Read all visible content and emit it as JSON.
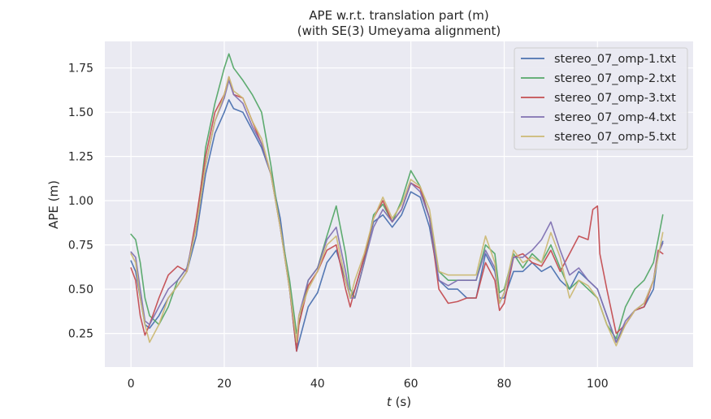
{
  "chart_data": {
    "type": "line",
    "title": "APE w.r.t. translation part (m)",
    "subtitle": "(with SE(3) Umeyama alignment)",
    "xlabel_var": "t",
    "xlabel_unit": "(s)",
    "ylabel": "APE (m)",
    "xlim": [
      -5.6,
      120.5
    ],
    "ylim": [
      0.06,
      1.9
    ],
    "xticks": [
      0,
      20,
      40,
      60,
      80,
      100
    ],
    "yticks": [
      0.25,
      0.5,
      0.75,
      1.0,
      1.25,
      1.5,
      1.75
    ],
    "xtick_labels": [
      "0",
      "20",
      "40",
      "60",
      "80",
      "100"
    ],
    "ytick_labels": [
      "0.25",
      "0.50",
      "0.75",
      "1.00",
      "1.25",
      "1.50",
      "1.75"
    ],
    "grid": true,
    "legend_position": "top-right",
    "series": [
      {
        "name": "stereo_07_omp-1.txt",
        "color": "#4c72b0",
        "x": [
          0,
          1,
          2,
          3,
          4,
          6,
          8,
          10,
          12,
          14,
          16,
          18,
          20,
          21,
          22,
          24,
          26,
          28,
          30,
          32,
          34,
          35.5,
          36,
          38,
          40,
          42,
          44,
          46,
          47,
          48,
          50,
          52,
          54,
          56,
          58,
          60,
          62,
          64,
          66,
          68,
          70,
          72,
          74,
          76,
          78,
          79,
          80,
          82,
          84,
          86,
          88,
          90,
          92,
          94,
          96,
          98,
          100,
          102,
          104,
          106,
          108,
          110,
          112,
          113,
          114
        ],
        "y": [
          0.66,
          0.6,
          0.45,
          0.3,
          0.28,
          0.35,
          0.45,
          0.52,
          0.6,
          0.8,
          1.15,
          1.38,
          1.5,
          1.57,
          1.52,
          1.5,
          1.4,
          1.3,
          1.15,
          0.9,
          0.5,
          0.15,
          0.2,
          0.4,
          0.48,
          0.65,
          0.72,
          0.55,
          0.45,
          0.5,
          0.68,
          0.88,
          0.92,
          0.85,
          0.92,
          1.05,
          1.02,
          0.85,
          0.55,
          0.5,
          0.5,
          0.45,
          0.45,
          0.7,
          0.6,
          0.45,
          0.45,
          0.6,
          0.6,
          0.65,
          0.6,
          0.63,
          0.55,
          0.5,
          0.6,
          0.55,
          0.5,
          0.35,
          0.2,
          0.3,
          0.38,
          0.4,
          0.5,
          0.7,
          0.77
        ]
      },
      {
        "name": "stereo_07_omp-2.txt",
        "color": "#55a868",
        "x": [
          0,
          1,
          2,
          3,
          4,
          6,
          8,
          10,
          12,
          14,
          16,
          18,
          20,
          21,
          22,
          24,
          26,
          28,
          30,
          32,
          34,
          35.5,
          36,
          38,
          40,
          42,
          44,
          46,
          47,
          48,
          50,
          52,
          54,
          56,
          58,
          60,
          62,
          64,
          66,
          68,
          70,
          72,
          74,
          76,
          78,
          79,
          80,
          82,
          84,
          86,
          88,
          90,
          92,
          94,
          96,
          98,
          100,
          102,
          104,
          106,
          108,
          110,
          112,
          113,
          114
        ],
        "y": [
          0.81,
          0.78,
          0.65,
          0.45,
          0.35,
          0.3,
          0.4,
          0.55,
          0.62,
          0.85,
          1.3,
          1.55,
          1.75,
          1.83,
          1.75,
          1.68,
          1.6,
          1.5,
          1.2,
          0.85,
          0.55,
          0.25,
          0.3,
          0.55,
          0.62,
          0.8,
          0.97,
          0.7,
          0.5,
          0.45,
          0.65,
          0.92,
          0.98,
          0.88,
          1.0,
          1.17,
          1.08,
          0.9,
          0.6,
          0.55,
          0.55,
          0.55,
          0.55,
          0.75,
          0.7,
          0.48,
          0.5,
          0.7,
          0.62,
          0.7,
          0.65,
          0.75,
          0.62,
          0.5,
          0.55,
          0.5,
          0.45,
          0.3,
          0.22,
          0.4,
          0.5,
          0.55,
          0.65,
          0.78,
          0.92
        ]
      },
      {
        "name": "stereo_07_omp-3.txt",
        "color": "#c44e52",
        "x": [
          0,
          1,
          2,
          3,
          4,
          6,
          8,
          10,
          12,
          14,
          16,
          18,
          20,
          21,
          22,
          24,
          26,
          28,
          30,
          32,
          34,
          35.5,
          36,
          38,
          40,
          42,
          44,
          46,
          47,
          48,
          50,
          52,
          54,
          56,
          58,
          60,
          62,
          64,
          66,
          68,
          70,
          72,
          74,
          76,
          78,
          79,
          80,
          82,
          84,
          86,
          88,
          90,
          92,
          94,
          96,
          98,
          99,
          100,
          100.5,
          102,
          104,
          106,
          108,
          110,
          112,
          113,
          114
        ],
        "y": [
          0.62,
          0.55,
          0.35,
          0.24,
          0.3,
          0.45,
          0.58,
          0.63,
          0.6,
          0.9,
          1.25,
          1.5,
          1.6,
          1.7,
          1.6,
          1.58,
          1.45,
          1.32,
          1.15,
          0.85,
          0.5,
          0.15,
          0.3,
          0.52,
          0.6,
          0.72,
          0.75,
          0.5,
          0.4,
          0.5,
          0.68,
          0.9,
          1.0,
          0.88,
          0.95,
          1.1,
          1.07,
          0.9,
          0.5,
          0.42,
          0.43,
          0.45,
          0.45,
          0.65,
          0.55,
          0.38,
          0.42,
          0.68,
          0.7,
          0.65,
          0.63,
          0.72,
          0.6,
          0.7,
          0.8,
          0.78,
          0.95,
          0.97,
          0.7,
          0.5,
          0.25,
          0.3,
          0.38,
          0.4,
          0.55,
          0.72,
          0.7
        ]
      },
      {
        "name": "stereo_07_omp-4.txt",
        "color": "#8172b2",
        "x": [
          0,
          1,
          2,
          3,
          4,
          6,
          8,
          10,
          12,
          14,
          16,
          18,
          20,
          21,
          22,
          24,
          26,
          28,
          30,
          32,
          34,
          35.5,
          36,
          38,
          40,
          42,
          44,
          46,
          47,
          48,
          50,
          52,
          54,
          56,
          58,
          60,
          62,
          64,
          66,
          68,
          70,
          72,
          74,
          76,
          78,
          79,
          80,
          82,
          84,
          86,
          88,
          90,
          92,
          94,
          96,
          98,
          100,
          102,
          104,
          106,
          108,
          110,
          112,
          113,
          114
        ],
        "y": [
          0.71,
          0.68,
          0.5,
          0.32,
          0.3,
          0.4,
          0.5,
          0.55,
          0.62,
          0.85,
          1.2,
          1.45,
          1.58,
          1.68,
          1.6,
          1.55,
          1.42,
          1.32,
          1.15,
          0.85,
          0.5,
          0.2,
          0.35,
          0.55,
          0.62,
          0.78,
          0.85,
          0.6,
          0.45,
          0.45,
          0.65,
          0.85,
          0.95,
          0.88,
          0.95,
          1.1,
          1.05,
          0.9,
          0.55,
          0.52,
          0.55,
          0.55,
          0.55,
          0.72,
          0.62,
          0.42,
          0.48,
          0.68,
          0.68,
          0.72,
          0.78,
          0.88,
          0.72,
          0.58,
          0.62,
          0.55,
          0.5,
          0.35,
          0.2,
          0.32,
          0.38,
          0.42,
          0.55,
          0.7,
          0.76
        ]
      },
      {
        "name": "stereo_07_omp-5.txt",
        "color": "#ccb974",
        "x": [
          0,
          1,
          2,
          3,
          4,
          6,
          8,
          10,
          12,
          14,
          16,
          18,
          20,
          21,
          22,
          24,
          26,
          28,
          30,
          32,
          34,
          35.5,
          36,
          38,
          40,
          42,
          44,
          46,
          47,
          48,
          50,
          52,
          54,
          56,
          58,
          60,
          62,
          64,
          66,
          68,
          70,
          72,
          74,
          76,
          78,
          79,
          80,
          82,
          84,
          86,
          88,
          90,
          92,
          94,
          96,
          98,
          100,
          102,
          104,
          106,
          108,
          110,
          112,
          113,
          114
        ],
        "y": [
          0.7,
          0.65,
          0.45,
          0.3,
          0.2,
          0.3,
          0.45,
          0.52,
          0.6,
          0.85,
          1.2,
          1.45,
          1.6,
          1.7,
          1.62,
          1.58,
          1.45,
          1.35,
          1.15,
          0.85,
          0.5,
          0.2,
          0.35,
          0.5,
          0.6,
          0.75,
          0.8,
          0.55,
          0.45,
          0.55,
          0.7,
          0.9,
          1.02,
          0.9,
          0.98,
          1.12,
          1.08,
          0.95,
          0.6,
          0.58,
          0.58,
          0.58,
          0.58,
          0.8,
          0.65,
          0.42,
          0.48,
          0.72,
          0.65,
          0.68,
          0.65,
          0.82,
          0.68,
          0.45,
          0.55,
          0.52,
          0.45,
          0.3,
          0.18,
          0.3,
          0.38,
          0.42,
          0.55,
          0.68,
          0.82
        ]
      }
    ]
  }
}
